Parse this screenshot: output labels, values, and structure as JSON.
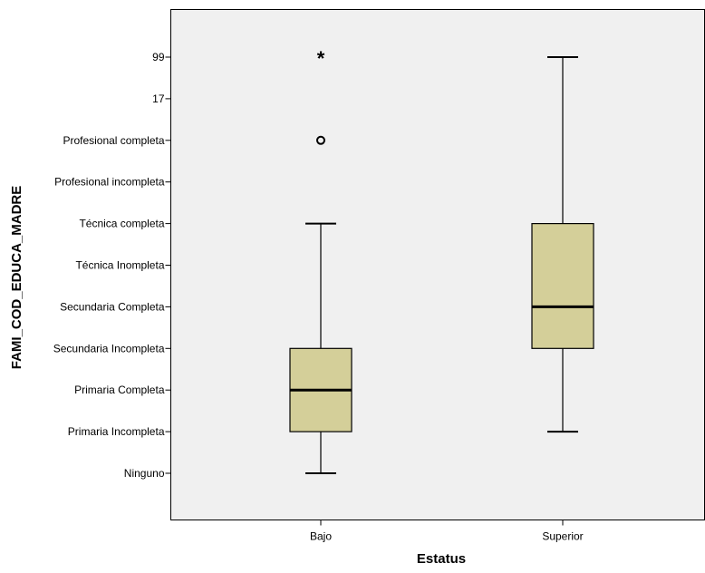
{
  "chart_data": {
    "type": "boxplot",
    "title": "",
    "xlabel": "Estatus",
    "ylabel": "FAMI_COD_EDUCA_MADRE",
    "y_tick_labels": [
      "Ninguno",
      "Primaria Incompleta",
      "Primaria Completa",
      "Secundaria Incompleta",
      "Secundaria Completa",
      "Técnica Inompleta",
      "Técnica completa",
      "Profesional incompleta",
      "Profesional completa",
      "17",
      "99"
    ],
    "categories": [
      "Bajo",
      "Superior"
    ],
    "boxes": [
      {
        "category": "Bajo",
        "whisker_low": "Ninguno",
        "q1": "Primaria Incompleta",
        "median": "Primaria Completa",
        "q3": "Secundaria Incompleta",
        "whisker_high": "Técnica completa",
        "outliers": [
          "Profesional completa"
        ],
        "extremes": [
          "99"
        ]
      },
      {
        "category": "Superior",
        "whisker_low": "Primaria Incompleta",
        "q1": "Secundaria Incompleta",
        "median": "Secundaria Completa",
        "q3": "Técnica completa",
        "whisker_high": "99",
        "outliers": [],
        "extremes": []
      }
    ],
    "colors": {
      "box_fill": "#d4cf99",
      "plot_background": "#f0f0f0",
      "lines": "#000000"
    },
    "grid": false,
    "legend": "none"
  }
}
